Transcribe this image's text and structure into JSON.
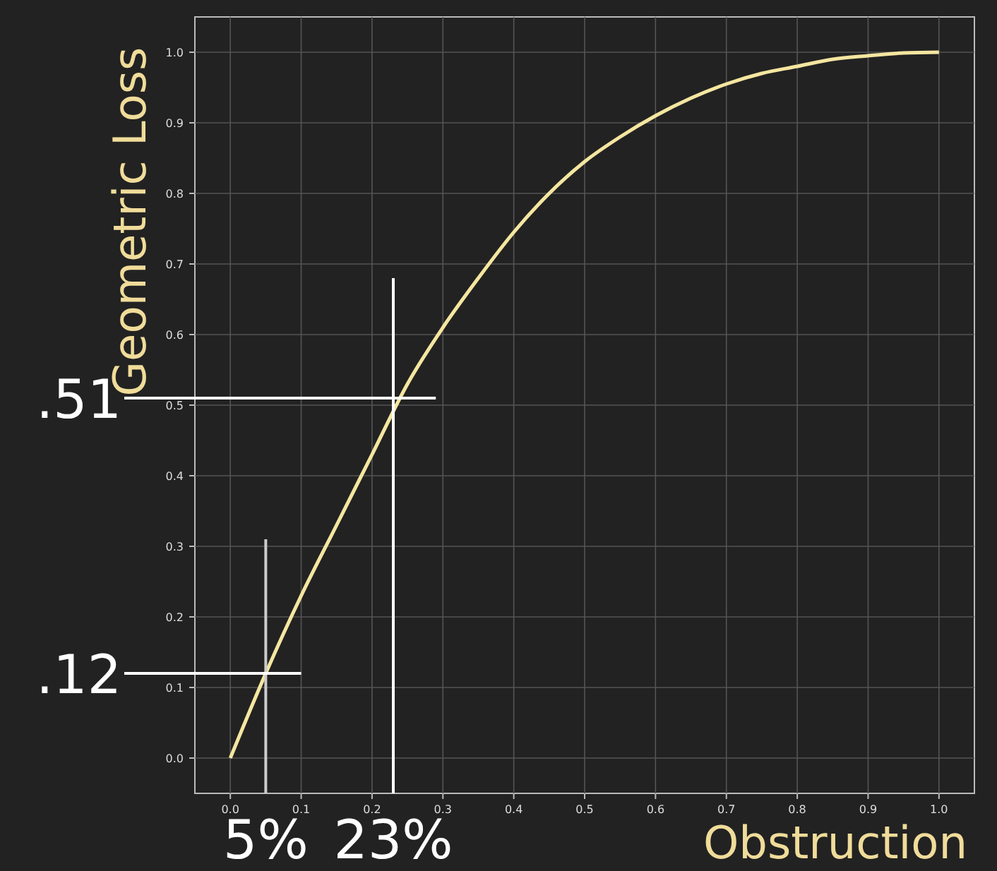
{
  "chart_data": {
    "type": "line",
    "xlabel": "Obstruction",
    "ylabel": "Geometric Loss",
    "xlim": [
      -0.05,
      1.05
    ],
    "ylim": [
      -0.05,
      1.05
    ],
    "xticks": [
      {
        "value": 0,
        "label": "0.0"
      },
      {
        "value": 0.1,
        "label": "0.1"
      },
      {
        "value": 0.2,
        "label": "0.2"
      },
      {
        "value": 0.3,
        "label": "0.3"
      },
      {
        "value": 0.4,
        "label": "0.4"
      },
      {
        "value": 0.5,
        "label": "0.5"
      },
      {
        "value": 0.6,
        "label": "0.6"
      },
      {
        "value": 0.7,
        "label": "0.7"
      },
      {
        "value": 0.8,
        "label": "0.8"
      },
      {
        "value": 0.9,
        "label": "0.9"
      },
      {
        "value": 1,
        "label": "1.0"
      }
    ],
    "yticks": [
      {
        "value": 0,
        "label": "0.0"
      },
      {
        "value": 0.1,
        "label": "0.1"
      },
      {
        "value": 0.2,
        "label": "0.2"
      },
      {
        "value": 0.3,
        "label": "0.3"
      },
      {
        "value": 0.4,
        "label": "0.4"
      },
      {
        "value": 0.5,
        "label": "0.5"
      },
      {
        "value": 0.6,
        "label": "0.6"
      },
      {
        "value": 0.7,
        "label": "0.7"
      },
      {
        "value": 0.8,
        "label": "0.8"
      },
      {
        "value": 0.9,
        "label": "0.9"
      },
      {
        "value": 1,
        "label": "1.0"
      }
    ],
    "grid": true,
    "x": [
      0,
      0.05,
      0.1,
      0.15,
      0.2,
      0.25,
      0.3,
      0.35,
      0.4,
      0.45,
      0.5,
      0.55,
      0.6,
      0.65,
      0.7,
      0.75,
      0.8,
      0.85,
      0.9,
      0.95,
      1
    ],
    "series": [
      {
        "color": "#f5e6a0",
        "values": [
          0,
          0.12,
          0.23,
          0.33,
          0.43,
          0.53,
          0.61,
          0.68,
          0.745,
          0.8,
          0.845,
          0.88,
          0.91,
          0.935,
          0.955,
          0.97,
          0.98,
          0.99,
          0.995,
          0.999,
          1
        ]
      }
    ],
    "ref_lines": [
      {
        "axis": "x",
        "value": 0.05,
        "label": "5%",
        "color": "#cccccc"
      },
      {
        "axis": "x",
        "value": 0.23,
        "label": "23%",
        "color": "#ffffff"
      },
      {
        "axis": "y",
        "value": 0.12,
        "label": ".12",
        "color": "#ffffff"
      },
      {
        "axis": "y",
        "value": 0.51,
        "label": ".51",
        "color": "#ffffff"
      }
    ]
  }
}
